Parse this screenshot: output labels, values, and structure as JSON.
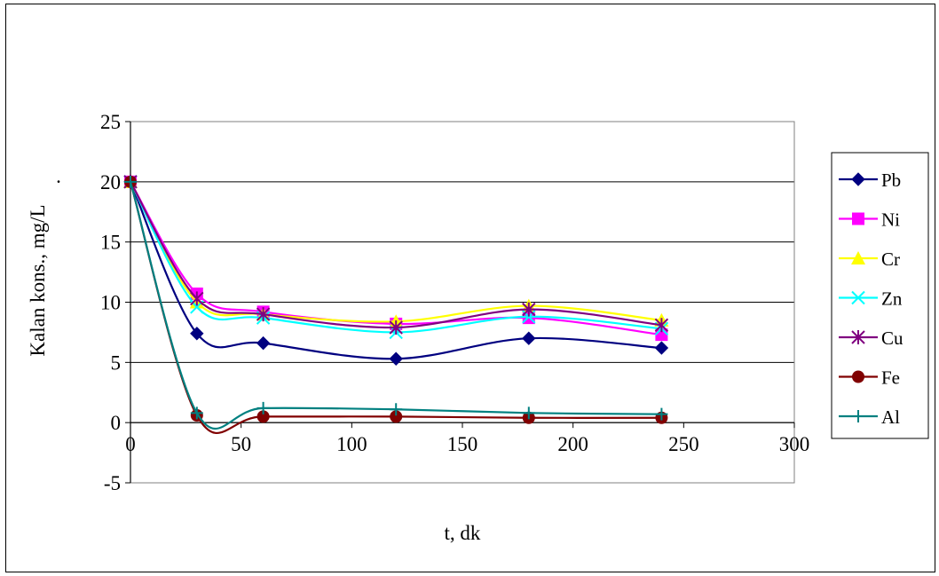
{
  "chart_data": {
    "type": "line",
    "xlabel": "t, dk",
    "ylabel": "Kalan kons., mg/L",
    "ylabel_suffix": ".",
    "xlim": [
      0,
      300
    ],
    "ylim": [
      -5,
      25
    ],
    "xticks": [
      "0",
      "50",
      "100",
      "150",
      "200",
      "250",
      "300"
    ],
    "yticks": [
      "-5",
      "0",
      "5",
      "10",
      "15",
      "20",
      "25"
    ],
    "grid": "horizontal",
    "legend_position": "right",
    "smooth": true,
    "x": [
      0,
      30,
      60,
      120,
      180,
      240
    ],
    "series": [
      {
        "name": "Pb",
        "color": "#000080",
        "marker": "diamond",
        "values": [
          20,
          7.4,
          6.6,
          5.3,
          7.0,
          6.2
        ]
      },
      {
        "name": "Ni",
        "color": "#ff00ff",
        "marker": "square",
        "values": [
          20,
          10.7,
          9.2,
          8.2,
          8.7,
          7.3
        ]
      },
      {
        "name": "Cr",
        "color": "#ffff00",
        "marker": "triangle",
        "values": [
          20,
          10.0,
          9.0,
          8.4,
          9.7,
          8.5
        ]
      },
      {
        "name": "Zn",
        "color": "#00ffff",
        "marker": "x",
        "values": [
          20,
          9.6,
          8.7,
          7.5,
          8.8,
          7.8
        ]
      },
      {
        "name": "Cu",
        "color": "#800080",
        "marker": "asterisk",
        "values": [
          20,
          10.3,
          9.0,
          7.9,
          9.4,
          8.1
        ]
      },
      {
        "name": "Fe",
        "color": "#800000",
        "marker": "circle",
        "values": [
          20,
          0.6,
          0.5,
          0.5,
          0.4,
          0.4
        ]
      },
      {
        "name": "Al",
        "color": "#008080",
        "marker": "plus",
        "values": [
          20,
          0.8,
          1.2,
          1.1,
          0.8,
          0.7
        ]
      }
    ]
  }
}
